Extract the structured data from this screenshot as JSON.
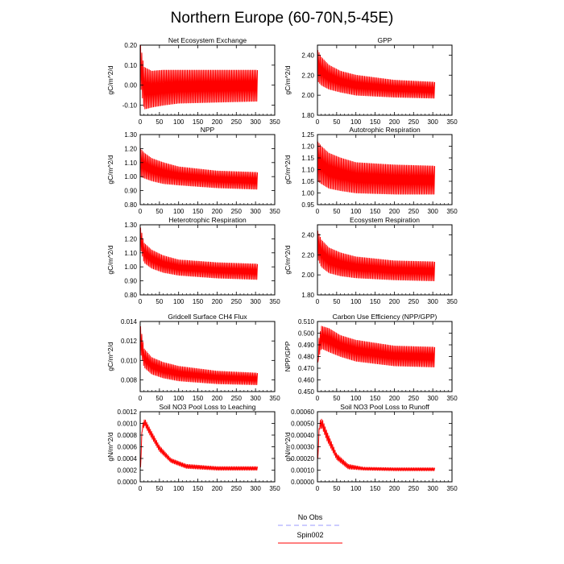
{
  "figure": {
    "title": "Northern Europe (60-70N,5-45E)"
  },
  "legend": {
    "entries": [
      {
        "label": "No Obs",
        "color": "#9999ff",
        "style": "dashed"
      },
      {
        "label": "Spin002",
        "color": "#ff0000",
        "style": "solid"
      }
    ]
  },
  "chart_data": [
    {
      "type": "line",
      "title": "Net Ecosystem Exchange",
      "ylabel": "gC/m^2/d",
      "xlim": [
        0,
        350
      ],
      "ylim": [
        -0.15,
        0.2
      ],
      "xticks": [
        0,
        50,
        100,
        150,
        200,
        250,
        300,
        350
      ],
      "xtick_labels": [
        "0",
        "50",
        "100",
        "150",
        "200",
        "250",
        "300",
        "350"
      ],
      "yticks": [
        -0.1,
        0.0,
        0.1,
        0.2
      ],
      "ytick_labels": [
        "-0.10",
        "0.00",
        "0.10",
        "0.20"
      ],
      "series": [
        {
          "name": "Spin002",
          "color": "#ff0000",
          "x_range": [
            1,
            305
          ],
          "cycles": 95,
          "start": 0.2,
          "spike_decay": 4,
          "envelope": {
            "x": [
              1,
              10,
              30,
              60,
              100,
              200,
              305
            ],
            "high": [
              0.2,
              0.09,
              0.07,
              0.075,
              0.075,
              0.075,
              0.075
            ],
            "low": [
              0.0,
              -0.12,
              -0.11,
              -0.1,
              -0.09,
              -0.085,
              -0.08
            ]
          }
        }
      ]
    },
    {
      "type": "line",
      "title": "GPP",
      "ylabel": "gC/m^2/d",
      "xlim": [
        0,
        350
      ],
      "ylim": [
        1.8,
        2.5
      ],
      "xticks": [
        0,
        50,
        100,
        150,
        200,
        250,
        300,
        350
      ],
      "xtick_labels": [
        "0",
        "50",
        "100",
        "150",
        "200",
        "250",
        "300",
        "350"
      ],
      "yticks": [
        1.8,
        2.0,
        2.2,
        2.4
      ],
      "ytick_labels": [
        "1.80",
        "2.00",
        "2.20",
        "2.40"
      ],
      "series": [
        {
          "name": "Spin002",
          "color": "#ff0000",
          "x_range": [
            1,
            305
          ],
          "cycles": 95,
          "envelope": {
            "x": [
              1,
              10,
              30,
              60,
              100,
              200,
              305
            ],
            "high": [
              2.45,
              2.38,
              2.3,
              2.24,
              2.2,
              2.15,
              2.13
            ],
            "low": [
              2.14,
              2.1,
              2.06,
              2.03,
              2.0,
              1.98,
              1.97
            ]
          }
        }
      ]
    },
    {
      "type": "line",
      "title": "NPP",
      "ylabel": "gC/m^2/d",
      "xlim": [
        0,
        350
      ],
      "ylim": [
        0.8,
        1.3
      ],
      "xticks": [
        0,
        50,
        100,
        150,
        200,
        250,
        300,
        350
      ],
      "xtick_labels": [
        "0",
        "50",
        "100",
        "150",
        "200",
        "250",
        "300",
        "350"
      ],
      "yticks": [
        0.8,
        0.9,
        1.0,
        1.1,
        1.2,
        1.3
      ],
      "ytick_labels": [
        "0.80",
        "0.90",
        "1.00",
        "1.10",
        "1.20",
        "1.30"
      ],
      "series": [
        {
          "name": "Spin002",
          "color": "#ff0000",
          "x_range": [
            1,
            305
          ],
          "cycles": 95,
          "envelope": {
            "x": [
              1,
              10,
              30,
              60,
              100,
              200,
              305
            ],
            "high": [
              1.2,
              1.17,
              1.13,
              1.1,
              1.07,
              1.04,
              1.03
            ],
            "low": [
              1.0,
              0.99,
              0.97,
              0.95,
              0.94,
              0.92,
              0.91
            ]
          }
        }
      ]
    },
    {
      "type": "line",
      "title": "Autotrophic Respiration",
      "ylabel": "gC/m^2/d",
      "xlim": [
        0,
        350
      ],
      "ylim": [
        0.95,
        1.25
      ],
      "xticks": [
        0,
        50,
        100,
        150,
        200,
        250,
        300,
        350
      ],
      "xtick_labels": [
        "0",
        "50",
        "100",
        "150",
        "200",
        "250",
        "300",
        "350"
      ],
      "yticks": [
        0.95,
        1.0,
        1.05,
        1.1,
        1.15,
        1.2,
        1.25
      ],
      "ytick_labels": [
        "0.95",
        "1.00",
        "1.05",
        "1.10",
        "1.15",
        "1.20",
        "1.25"
      ],
      "series": [
        {
          "name": "Spin002",
          "color": "#ff0000",
          "x_range": [
            1,
            305
          ],
          "cycles": 95,
          "envelope": {
            "x": [
              1,
              10,
              30,
              60,
              100,
              200,
              305
            ],
            "high": [
              1.22,
              1.2,
              1.17,
              1.15,
              1.13,
              1.12,
              1.115
            ],
            "low": [
              1.05,
              1.04,
              1.02,
              1.01,
              1.0,
              0.995,
              0.995
            ]
          }
        }
      ]
    },
    {
      "type": "line",
      "title": "Heterotrophic Respiration",
      "ylabel": "gC/m^2/d",
      "xlim": [
        0,
        350
      ],
      "ylim": [
        0.8,
        1.3
      ],
      "xticks": [
        0,
        50,
        100,
        150,
        200,
        250,
        300,
        350
      ],
      "xtick_labels": [
        "0",
        "50",
        "100",
        "150",
        "200",
        "250",
        "300",
        "350"
      ],
      "yticks": [
        0.8,
        0.9,
        1.0,
        1.1,
        1.2,
        1.3
      ],
      "ytick_labels": [
        "0.80",
        "0.90",
        "1.00",
        "1.10",
        "1.20",
        "1.30"
      ],
      "series": [
        {
          "name": "Spin002",
          "color": "#ff0000",
          "x_range": [
            1,
            305
          ],
          "cycles": 95,
          "envelope": {
            "x": [
              1,
              10,
              30,
              60,
              100,
              200,
              305
            ],
            "high": [
              1.28,
              1.17,
              1.12,
              1.08,
              1.05,
              1.03,
              1.02
            ],
            "low": [
              1.13,
              1.03,
              0.99,
              0.96,
              0.94,
              0.92,
              0.91
            ]
          }
        }
      ]
    },
    {
      "type": "line",
      "title": "Ecosystem Respiration",
      "ylabel": "gC/m^2/d",
      "xlim": [
        0,
        350
      ],
      "ylim": [
        1.8,
        2.5
      ],
      "xticks": [
        0,
        50,
        100,
        150,
        200,
        250,
        300,
        350
      ],
      "xtick_labels": [
        "0",
        "50",
        "100",
        "150",
        "200",
        "250",
        "300",
        "350"
      ],
      "yticks": [
        1.8,
        2.0,
        2.2,
        2.4
      ],
      "ytick_labels": [
        "1.80",
        "2.00",
        "2.20",
        "2.40"
      ],
      "series": [
        {
          "name": "Spin002",
          "color": "#ff0000",
          "x_range": [
            1,
            305
          ],
          "cycles": 95,
          "envelope": {
            "x": [
              1,
              10,
              30,
              60,
              100,
              200,
              305
            ],
            "high": [
              2.44,
              2.35,
              2.27,
              2.22,
              2.18,
              2.14,
              2.13
            ],
            "low": [
              2.16,
              2.08,
              2.02,
              1.99,
              1.97,
              1.95,
              1.94
            ]
          }
        }
      ]
    },
    {
      "type": "line",
      "title": "Gridcell Surface CH4 Flux",
      "ylabel": "gC/m^2/d",
      "xlim": [
        0,
        350
      ],
      "ylim": [
        0.0068,
        0.014
      ],
      "xticks": [
        0,
        50,
        100,
        150,
        200,
        250,
        300,
        350
      ],
      "xtick_labels": [
        "0",
        "50",
        "100",
        "150",
        "200",
        "250",
        "300",
        "350"
      ],
      "yticks": [
        0.008,
        0.01,
        0.012,
        0.014
      ],
      "ytick_labels": [
        "0.008",
        "0.010",
        "0.012",
        "0.014"
      ],
      "series": [
        {
          "name": "Spin002",
          "color": "#ff0000",
          "x_range": [
            1,
            305
          ],
          "cycles": 95,
          "envelope": {
            "x": [
              1,
              10,
              30,
              60,
              100,
              200,
              305
            ],
            "high": [
              0.0135,
              0.0112,
              0.0103,
              0.0098,
              0.0094,
              0.0089,
              0.0087
            ],
            "low": [
              0.0108,
              0.0093,
              0.0086,
              0.0082,
              0.0079,
              0.0076,
              0.0075
            ]
          }
        }
      ]
    },
    {
      "type": "line",
      "title": "Carbon Use Efficiency (NPP/GPP)",
      "ylabel": "NPP/GPP",
      "xlim": [
        0,
        350
      ],
      "ylim": [
        0.45,
        0.51
      ],
      "xticks": [
        0,
        50,
        100,
        150,
        200,
        250,
        300,
        350
      ],
      "xtick_labels": [
        "0",
        "50",
        "100",
        "150",
        "200",
        "250",
        "300",
        "350"
      ],
      "yticks": [
        0.45,
        0.46,
        0.47,
        0.48,
        0.49,
        0.5,
        0.51
      ],
      "ytick_labels": [
        "0.450",
        "0.460",
        "0.470",
        "0.480",
        "0.490",
        "0.500",
        "0.510"
      ],
      "series": [
        {
          "name": "Spin002",
          "color": "#ff0000",
          "x_range": [
            1,
            305
          ],
          "cycles": 95,
          "start": 0.475,
          "spike_decay": 3,
          "envelope": {
            "x": [
              1,
              10,
              30,
              60,
              100,
              200,
              305
            ],
            "high": [
              0.49,
              0.506,
              0.504,
              0.498,
              0.494,
              0.489,
              0.488
            ],
            "low": [
              0.476,
              0.487,
              0.484,
              0.48,
              0.476,
              0.472,
              0.471
            ]
          }
        }
      ]
    },
    {
      "type": "line",
      "title": "Soil NO3 Pool Loss to Leaching",
      "ylabel": "gN/m^2/d",
      "xlim": [
        0,
        350
      ],
      "ylim": [
        0.0,
        0.0012
      ],
      "xticks": [
        0,
        50,
        100,
        150,
        200,
        250,
        300,
        350
      ],
      "xtick_labels": [
        "0",
        "50",
        "100",
        "150",
        "200",
        "250",
        "300",
        "350"
      ],
      "yticks": [
        0.0,
        0.0002,
        0.0004,
        0.0006,
        0.0008,
        0.001,
        0.0012
      ],
      "ytick_labels": [
        "0.0000",
        "0.0002",
        "0.0004",
        "0.0006",
        "0.0008",
        "0.0010",
        "0.0012"
      ],
      "series": [
        {
          "name": "Spin002",
          "color": "#ff0000",
          "x_range": [
            1,
            305
          ],
          "cycles": 95,
          "envelope": {
            "x": [
              1,
              5,
              12,
              25,
              50,
              80,
              120,
              200,
              305
            ],
            "high": [
              0.00025,
              0.00098,
              0.00108,
              0.00092,
              0.00062,
              0.0004,
              0.0003,
              0.00026,
              0.00026
            ],
            "low": [
              0.00025,
              0.00088,
              0.00096,
              0.0008,
              0.00052,
              0.00033,
              0.00023,
              0.0002,
              0.0002
            ]
          }
        }
      ]
    },
    {
      "type": "line",
      "title": "Soil NO3 Pool Loss to Runoff",
      "ylabel": "gN/m^2/d",
      "xlim": [
        0,
        350
      ],
      "ylim": [
        0.0,
        0.0006
      ],
      "xticks": [
        0,
        50,
        100,
        150,
        200,
        250,
        300,
        350
      ],
      "xtick_labels": [
        "0",
        "50",
        "100",
        "150",
        "200",
        "250",
        "300",
        "350"
      ],
      "yticks": [
        0.0,
        0.0001,
        0.0002,
        0.0003,
        0.0004,
        0.0005,
        0.0006
      ],
      "ytick_labels": [
        "0.00000",
        "0.00010",
        "0.00020",
        "0.00030",
        "0.00040",
        "0.00050",
        "0.00060"
      ],
      "series": [
        {
          "name": "Spin002",
          "color": "#ff0000",
          "x_range": [
            1,
            305
          ],
          "cycles": 95,
          "envelope": {
            "x": [
              1,
              5,
              12,
              25,
              50,
              80,
              120,
              200,
              305
            ],
            "high": [
              0.0002,
              0.00052,
              0.00054,
              0.00043,
              0.00024,
              0.00015,
              0.000125,
              0.00012,
              0.00012
            ],
            "low": [
              0.0002,
              0.00045,
              0.00046,
              0.00035,
              0.00019,
              0.00011,
              0.0001,
              9.5e-05,
              9.5e-05
            ]
          }
        }
      ]
    }
  ]
}
